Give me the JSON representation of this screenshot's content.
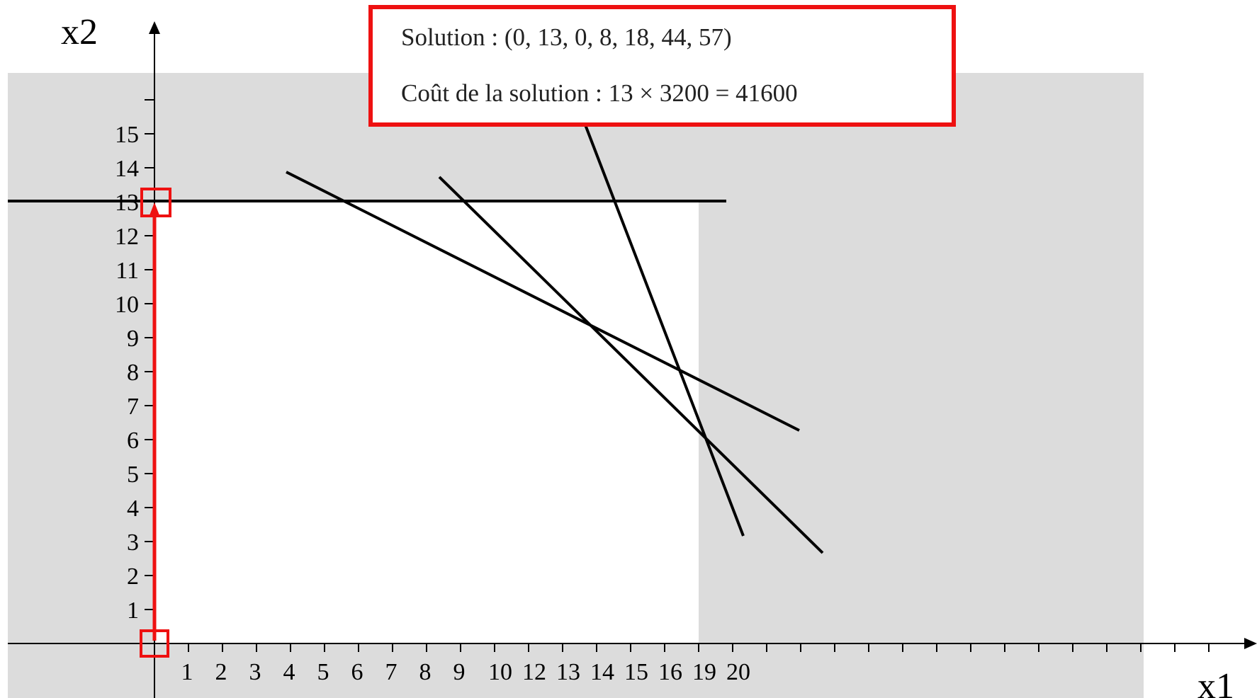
{
  "axes": {
    "x_label": "x1",
    "y_label": "x2",
    "x_tick_labels": [
      "1",
      "2",
      "3",
      "4",
      "5",
      "6",
      "7",
      "8",
      "9",
      "10",
      "12",
      "13",
      "14",
      "15",
      "16",
      "19",
      "20"
    ],
    "y_tick_labels": [
      "1",
      "2",
      "3",
      "4",
      "5",
      "6",
      "7",
      "8",
      "9",
      "10",
      "11",
      "12",
      "13",
      "14",
      "15"
    ]
  },
  "solution_box": {
    "line1": "Solution : (0, 13, 0, 8, 18, 44, 57)",
    "line2": "Coût de la solution : 13 × 3200 = 41600"
  },
  "colors": {
    "infeasible_region": "#dcdcdc",
    "feasible_region": "#ffffff",
    "constraint_line": "#000000",
    "highlight": "#ee1111"
  },
  "highlighted_points": [
    {
      "x1": 0,
      "x2": 0
    },
    {
      "x1": 0,
      "x2": 13
    }
  ],
  "path": {
    "from": {
      "x1": 0,
      "x2": 0
    },
    "to": {
      "x1": 0,
      "x2": 13
    }
  }
}
